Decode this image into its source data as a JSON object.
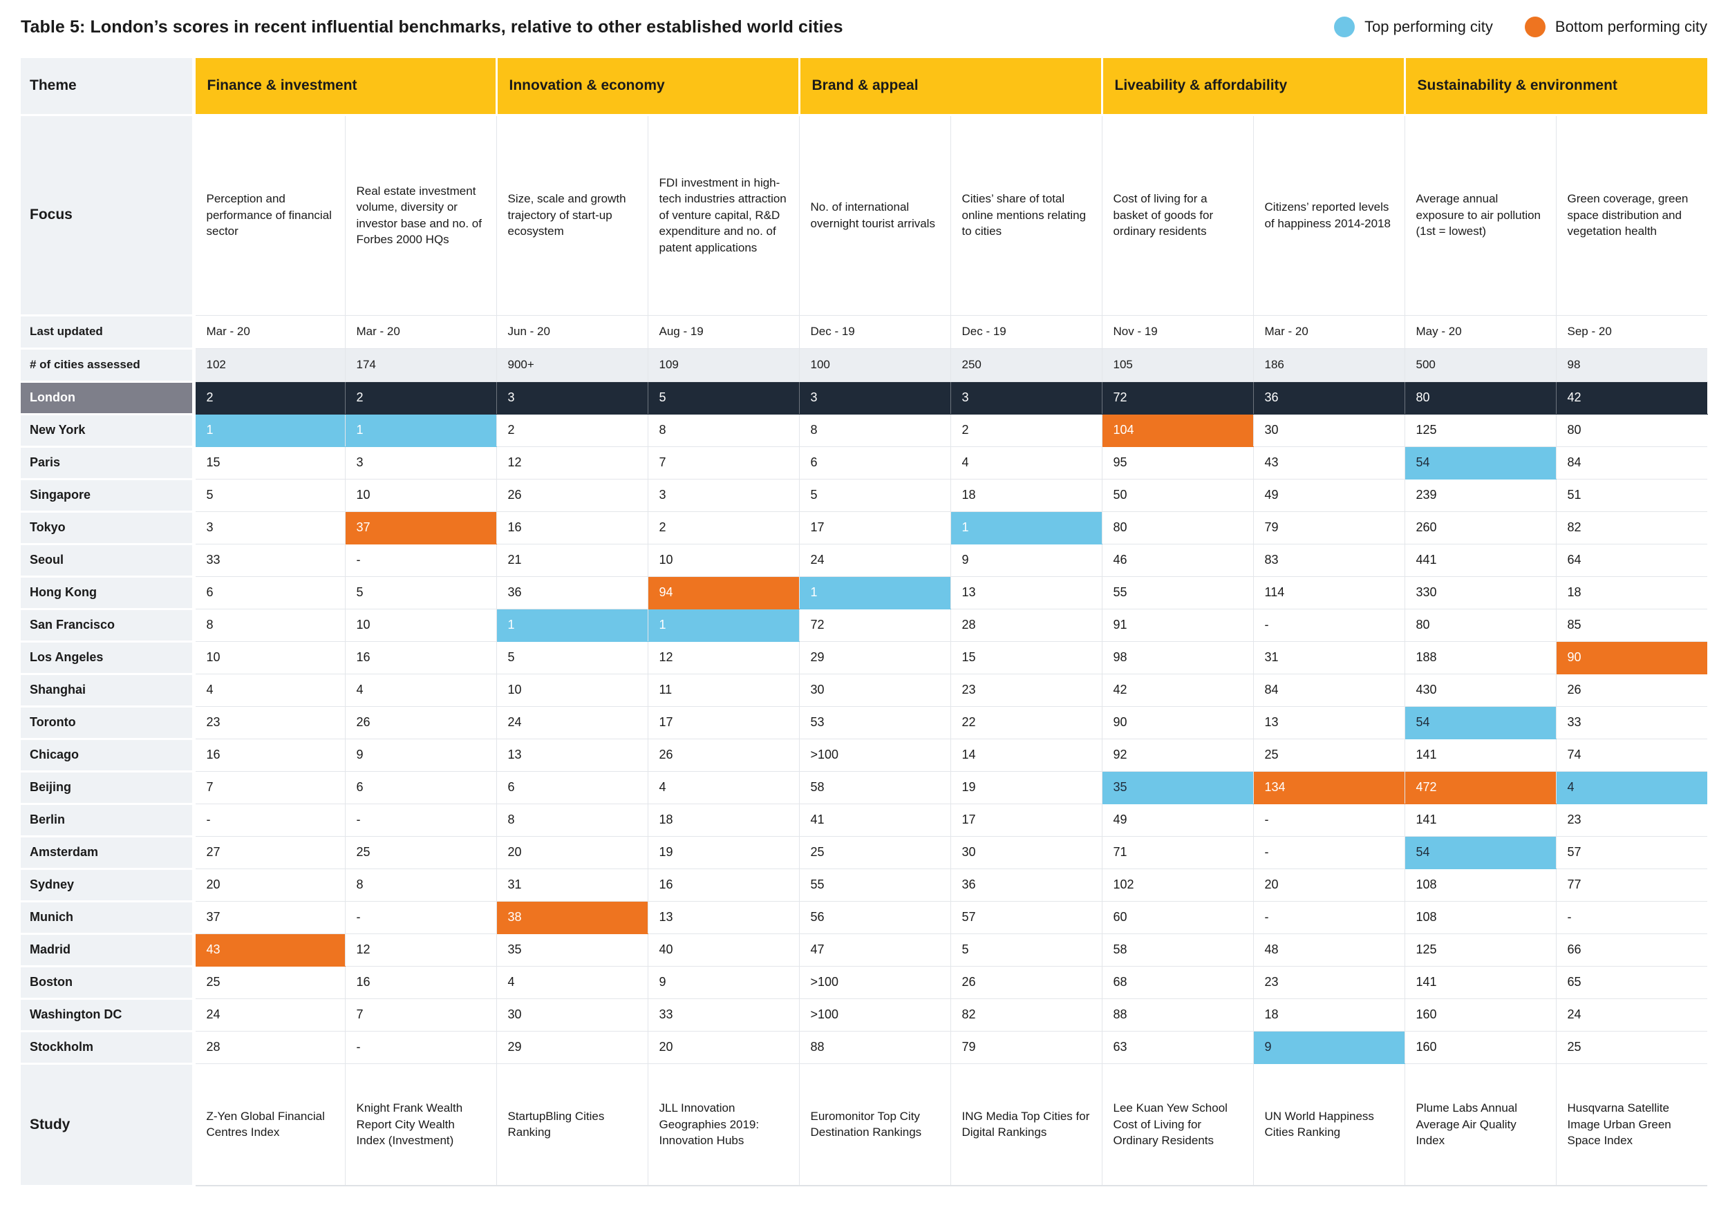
{
  "title": "Table 5: London’s scores in recent influential benchmarks, relative to other established world cities",
  "legend": {
    "top": {
      "label": "Top performing city",
      "color": "#6EC6E8"
    },
    "bottom": {
      "label": "Bottom performing city",
      "color": "#EE7420"
    }
  },
  "colors": {
    "theme_header": "#FDC215",
    "london_row_bg": "#1F2A38",
    "london_label_bg": "#7E7F8A",
    "label_column_bg": "#EFF2F5",
    "shaded_row_bg": "#EBEEF2",
    "top_highlight": "#6EC6E8",
    "bottom_highlight": "#EE7420",
    "dark_text": "#1F2A38",
    "light_text": "#FFFFFF"
  },
  "table": {
    "corner_label": "Theme",
    "themes": [
      "Finance & investment",
      "Innovation & economy",
      "Brand & appeal",
      "Liveability & affordability",
      "Sustainability & environment"
    ],
    "focus_label": "Focus",
    "focus": [
      "Perception and performance of financial sector",
      "Real estate investment volume, diversity or investor base and no. of Forbes 2000 HQs",
      "Size, scale and growth trajectory of start-up ecosystem",
      "FDI investment in high-tech industries attraction of venture capital, R&D expenditure and no. of patent applications",
      "No. of international overnight tourist arrivals",
      "Cities’ share of total online mentions relating to cities",
      "Cost of living for a basket of goods for ordinary residents",
      "Citizens’ reported levels of happiness 2014-2018",
      "Average annual exposure to air pollution (1st = lowest)",
      "Green coverage, green space distribution and vegetation health"
    ],
    "last_updated_label": "Last updated",
    "last_updated": [
      "Mar - 20",
      "Mar - 20",
      "Jun - 20",
      "Aug - 19",
      "Dec - 19",
      "Dec - 19",
      "Nov - 19",
      "Mar - 20",
      "May - 20",
      "Sep - 20"
    ],
    "cities_assessed_label": "# of cities assessed",
    "cities_assessed": [
      "102",
      "174",
      "900+",
      "109",
      "100",
      "250",
      "105",
      "186",
      "500",
      "98"
    ],
    "city_rows": [
      {
        "city": "London",
        "is_london": true,
        "values": [
          "2",
          "2",
          "3",
          "5",
          "3",
          "3",
          "72",
          "36",
          "80",
          "42"
        ],
        "highlights": {}
      },
      {
        "city": "New York",
        "values": [
          "1",
          "1",
          "2",
          "8",
          "8",
          "2",
          "104",
          "30",
          "125",
          "80"
        ],
        "highlights": {
          "0": "top",
          "1": "top",
          "6": "bottom"
        }
      },
      {
        "city": "Paris",
        "values": [
          "15",
          "3",
          "12",
          "7",
          "6",
          "4",
          "95",
          "43",
          "54",
          "84"
        ],
        "highlights": {
          "8": "top"
        }
      },
      {
        "city": "Singapore",
        "values": [
          "5",
          "10",
          "26",
          "3",
          "5",
          "18",
          "50",
          "49",
          "239",
          "51"
        ],
        "highlights": {}
      },
      {
        "city": "Tokyo",
        "values": [
          "3",
          "37",
          "16",
          "2",
          "17",
          "1",
          "80",
          "79",
          "260",
          "82"
        ],
        "highlights": {
          "1": "bottom",
          "5": "top"
        }
      },
      {
        "city": "Seoul",
        "values": [
          "33",
          "-",
          "21",
          "10",
          "24",
          "9",
          "46",
          "83",
          "441",
          "64"
        ],
        "highlights": {}
      },
      {
        "city": "Hong Kong",
        "values": [
          "6",
          "5",
          "36",
          "94",
          "1",
          "13",
          "55",
          "114",
          "330",
          "18"
        ],
        "highlights": {
          "3": "bottom",
          "4": "top"
        }
      },
      {
        "city": "San Francisco",
        "values": [
          "8",
          "10",
          "1",
          "1",
          "72",
          "28",
          "91",
          "-",
          "80",
          "85"
        ],
        "highlights": {
          "2": "top",
          "3": "top"
        }
      },
      {
        "city": "Los Angeles",
        "values": [
          "10",
          "16",
          "5",
          "12",
          "29",
          "15",
          "98",
          "31",
          "188",
          "90"
        ],
        "highlights": {
          "9": "bottom"
        }
      },
      {
        "city": "Shanghai",
        "values": [
          "4",
          "4",
          "10",
          "11",
          "30",
          "23",
          "42",
          "84",
          "430",
          "26"
        ],
        "highlights": {}
      },
      {
        "city": "Toronto",
        "values": [
          "23",
          "26",
          "24",
          "17",
          "53",
          "22",
          "90",
          "13",
          "54",
          "33"
        ],
        "highlights": {
          "8": "top"
        }
      },
      {
        "city": "Chicago",
        "values": [
          "16",
          "9",
          "13",
          "26",
          ">100",
          "14",
          "92",
          "25",
          "141",
          "74"
        ],
        "highlights": {}
      },
      {
        "city": "Beijing",
        "values": [
          "7",
          "6",
          "6",
          "4",
          "58",
          "19",
          "35",
          "134",
          "472",
          "4"
        ],
        "highlights": {
          "6": "top",
          "7": "bottom",
          "8": "bottom",
          "9": "top"
        }
      },
      {
        "city": "Berlin",
        "values": [
          "-",
          "-",
          "8",
          "18",
          "41",
          "17",
          "49",
          "-",
          "141",
          "23"
        ],
        "highlights": {}
      },
      {
        "city": "Amsterdam",
        "values": [
          "27",
          "25",
          "20",
          "19",
          "25",
          "30",
          "71",
          "-",
          "54",
          "57"
        ],
        "highlights": {
          "8": "top"
        }
      },
      {
        "city": "Sydney",
        "values": [
          "20",
          "8",
          "31",
          "16",
          "55",
          "36",
          "102",
          "20",
          "108",
          "77"
        ],
        "highlights": {}
      },
      {
        "city": "Munich",
        "values": [
          "37",
          "-",
          "38",
          "13",
          "56",
          "57",
          "60",
          "-",
          "108",
          "-"
        ],
        "highlights": {
          "2": "bottom"
        }
      },
      {
        "city": "Madrid",
        "values": [
          "43",
          "12",
          "35",
          "40",
          "47",
          "5",
          "58",
          "48",
          "125",
          "66"
        ],
        "highlights": {
          "0": "bottom"
        }
      },
      {
        "city": "Boston",
        "values": [
          "25",
          "16",
          "4",
          "9",
          ">100",
          "26",
          "68",
          "23",
          "141",
          "65"
        ],
        "highlights": {}
      },
      {
        "city": "Washington DC",
        "values": [
          "24",
          "7",
          "30",
          "33",
          ">100",
          "82",
          "88",
          "18",
          "160",
          "24"
        ],
        "highlights": {}
      },
      {
        "city": "Stockholm",
        "values": [
          "28",
          "-",
          "29",
          "20",
          "88",
          "79",
          "63",
          "9",
          "160",
          "25"
        ],
        "highlights": {
          "7": "top"
        }
      }
    ],
    "study_label": "Study",
    "studies": [
      "Z-Yen Global Financial Centres Index",
      "Knight Frank Wealth Report City Wealth Index (Investment)",
      "StartupBling Cities Ranking",
      "JLL Innovation Geographies 2019: Innovation Hubs",
      "Euromonitor Top City Destination Rankings",
      "ING Media Top Cities for Digital Rankings",
      "Lee Kuan Yew School Cost of Living for Ordinary Residents",
      "UN World Happiness Cities Ranking",
      "Plume Labs Annual Average Air Quality Index",
      "Husqvarna Satellite Image Urban Green Space Index"
    ]
  }
}
